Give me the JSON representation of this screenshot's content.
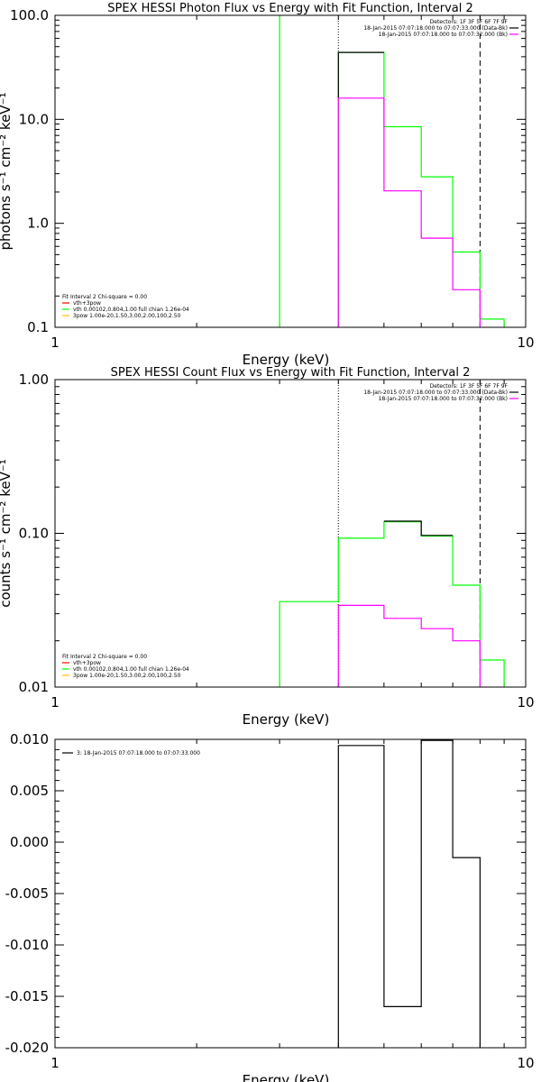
{
  "colors": {
    "background": "#ffffff",
    "axis": "#000000",
    "green": "#00ff00",
    "magenta": "#ff00ff",
    "red": "#ff0000",
    "yellow": "#ffc000"
  },
  "chart_data": [
    {
      "type": "line",
      "title": "SPEX HESSI Photon Flux vs Energy with Fit Function, Interval 2",
      "xlabel": "Energy (keV)",
      "ylabel": "photons s⁻¹ cm⁻² keV⁻¹",
      "xscale": "log",
      "yscale": "log",
      "xlim": [
        1,
        10
      ],
      "ylim": [
        0.1,
        100
      ],
      "x_ticks": [
        "1",
        "10"
      ],
      "y_ticks": [
        {
          "v": 0.1,
          "label": "0.1"
        },
        {
          "v": 1,
          "label": "1.0"
        },
        {
          "v": 10,
          "label": "10.0"
        },
        {
          "v": 100,
          "label": "100.0"
        }
      ],
      "legend_tr": {
        "header": "Detectors: 1F 3F 5F 6F 7F 9F",
        "lines": [
          {
            "text": "18-Jan-2015 07:07:18.000 to 07:07:33.000 (Data-Bk)",
            "color": "#000000"
          },
          {
            "text": "18-Jan-2015 07:07:18.000 to 07:07:32.000 (Bk)",
            "color": "#ff00ff"
          }
        ]
      },
      "legend_bl": {
        "header": "Fit Interval 2   Chi-square = 0.00",
        "lines": [
          {
            "text": "vth+3pow",
            "color": "#ff0000"
          },
          {
            "text": "vth 0.00102,0.804,1.00  full chian 1.26e-04",
            "color": "#00ff00"
          },
          {
            "text": "3pow 1.00e-20,1.50,3.00,2.00,100,2.50",
            "color": "#ffc000"
          }
        ]
      },
      "vlines": [
        {
          "x": 4.0,
          "style": "dotted"
        },
        {
          "x": 8.0,
          "style": "dashed"
        }
      ],
      "series": [
        {
          "color": "#00ff00",
          "x": [
            3.0,
            3.0
          ],
          "y": [
            0.1,
            100
          ]
        },
        {
          "color": "#00ff00",
          "x": [
            4.0,
            4.0,
            5.0,
            5.0,
            6.0,
            6.0,
            7.0,
            7.0,
            8.0,
            8.0,
            9.0,
            9.0
          ],
          "y": [
            0.1,
            44,
            44,
            8.5,
            8.5,
            2.8,
            2.8,
            0.53,
            0.53,
            0.12,
            0.12,
            0.1
          ]
        },
        {
          "color": "#000000",
          "x": [
            4.0,
            4.0,
            5.0
          ],
          "y": [
            16,
            44,
            44
          ]
        },
        {
          "color": "#ff00ff",
          "x": [
            4.0,
            4.0,
            5.0,
            5.0,
            6.0,
            6.0,
            7.0,
            7.0,
            8.0,
            8.0
          ],
          "y": [
            0.1,
            16,
            16,
            2.05,
            2.05,
            0.72,
            0.72,
            0.23,
            0.23,
            0.1
          ]
        }
      ]
    },
    {
      "type": "line",
      "title": "SPEX HESSI Count Flux vs Energy with Fit Function, Interval 2",
      "xlabel": "Energy (keV)",
      "ylabel": "counts s⁻¹ cm⁻² keV⁻¹",
      "xscale": "log",
      "yscale": "log",
      "xlim": [
        1,
        10
      ],
      "ylim": [
        0.01,
        1
      ],
      "x_ticks": [
        "1",
        "10"
      ],
      "y_ticks": [
        {
          "v": 0.01,
          "label": "0.01"
        },
        {
          "v": 0.1,
          "label": "0.10"
        },
        {
          "v": 1,
          "label": "1.00"
        }
      ],
      "legend_tr": {
        "header": "Detectors: 1F 3F 5F 6F 7F 9F",
        "lines": [
          {
            "text": "18-Jan-2015 07:07:18.000 to 07:07:33.000 (Data-Bk)",
            "color": "#000000"
          },
          {
            "text": "18-Jan-2015 07:07:18.000 to 07:07:32.000 (Bk)",
            "color": "#ff00ff"
          }
        ]
      },
      "legend_bl": {
        "header": "Fit Interval 2   Chi-square = 0.00",
        "lines": [
          {
            "text": "vth+3pow",
            "color": "#ff0000"
          },
          {
            "text": "vth 0.00102,0.804,1.00  full chian 1.26e-04",
            "color": "#00ff00"
          },
          {
            "text": "3pow 1.00e-20,1.50,3.00,2.00,100,2.50",
            "color": "#ffc000"
          }
        ]
      },
      "vlines": [
        {
          "x": 4.0,
          "style": "dotted"
        },
        {
          "x": 8.0,
          "style": "dashed"
        }
      ],
      "series": [
        {
          "color": "#00ff00",
          "x": [
            3.0,
            3.0,
            4.0,
            4.0,
            5.0,
            5.0,
            6.0,
            6.0,
            7.0,
            7.0,
            8.0,
            8.0,
            9.0,
            9.0
          ],
          "y": [
            0.01,
            0.036,
            0.036,
            0.093,
            0.093,
            0.119,
            0.119,
            0.096,
            0.096,
            0.046,
            0.046,
            0.015,
            0.015,
            0.01
          ]
        },
        {
          "color": "#000000",
          "x": [
            5.0,
            6.0,
            6.0,
            7.0
          ],
          "y": [
            0.12,
            0.12,
            0.097,
            0.097
          ]
        },
        {
          "color": "#ff00ff",
          "x": [
            4.0,
            4.0,
            5.0,
            5.0,
            6.0,
            6.0,
            7.0,
            7.0,
            8.0,
            8.0
          ],
          "y": [
            0.01,
            0.034,
            0.034,
            0.028,
            0.028,
            0.024,
            0.024,
            0.02,
            0.02,
            0.01
          ]
        }
      ]
    },
    {
      "type": "line",
      "title": "",
      "xlabel": "Energy (keV)",
      "ylabel": "",
      "xscale": "log",
      "yscale": "linear",
      "xlim": [
        1,
        10
      ],
      "ylim": [
        -0.02,
        0.01
      ],
      "x_ticks": [
        "1",
        "10"
      ],
      "y_ticks": [
        {
          "v": 0.01,
          "label": "0.010"
        },
        {
          "v": 0.005,
          "label": "0.005"
        },
        {
          "v": 0.0,
          "label": "0.000"
        },
        {
          "v": -0.005,
          "label": "-0.005"
        },
        {
          "v": -0.01,
          "label": "-0.010"
        },
        {
          "v": -0.015,
          "label": "-0.015"
        },
        {
          "v": -0.02,
          "label": "-0.020"
        }
      ],
      "legend_tl": {
        "lines": [
          {
            "text": "3: 18-Jan-2015 07:07:18.000 to 07:07:33.000",
            "color": "#000000"
          }
        ]
      },
      "series": [
        {
          "color": "#000000",
          "x": [
            4.0,
            4.0,
            5.0,
            5.0,
            6.0,
            6.0,
            7.0,
            7.0,
            8.0,
            8.0
          ],
          "y": [
            -0.02,
            0.0094,
            0.0094,
            -0.016,
            -0.016,
            0.0099,
            0.0099,
            -0.0015,
            -0.0015,
            -0.02
          ]
        }
      ]
    }
  ]
}
